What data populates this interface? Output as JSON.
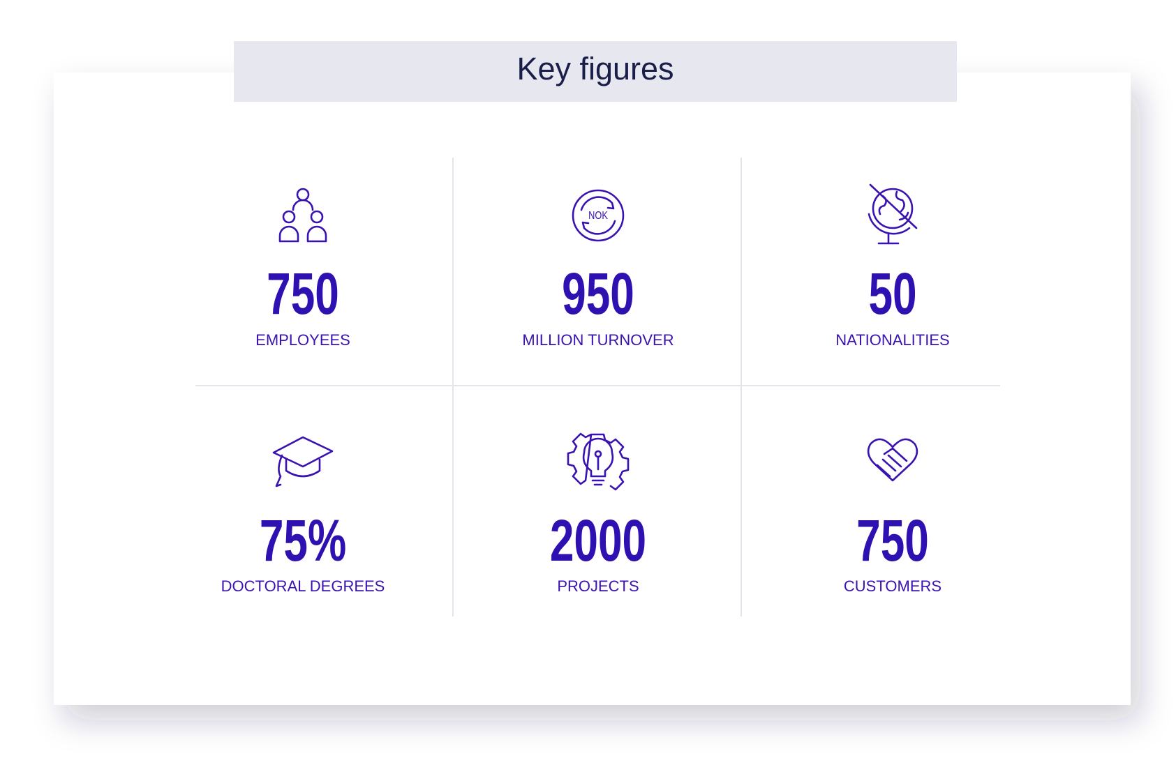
{
  "title": "Key figures",
  "figures": [
    {
      "value": "750",
      "label": "EMPLOYEES"
    },
    {
      "value": "950",
      "label": "MILLION TURNOVER",
      "icon_text": "NOK"
    },
    {
      "value": "50",
      "label": "NATIONALITIES"
    },
    {
      "value": "75%",
      "label": "DOCTORAL DEGREES"
    },
    {
      "value": "2000",
      "label": "PROJECTS"
    },
    {
      "value": "750",
      "label": "CUSTOMERS"
    }
  ]
}
